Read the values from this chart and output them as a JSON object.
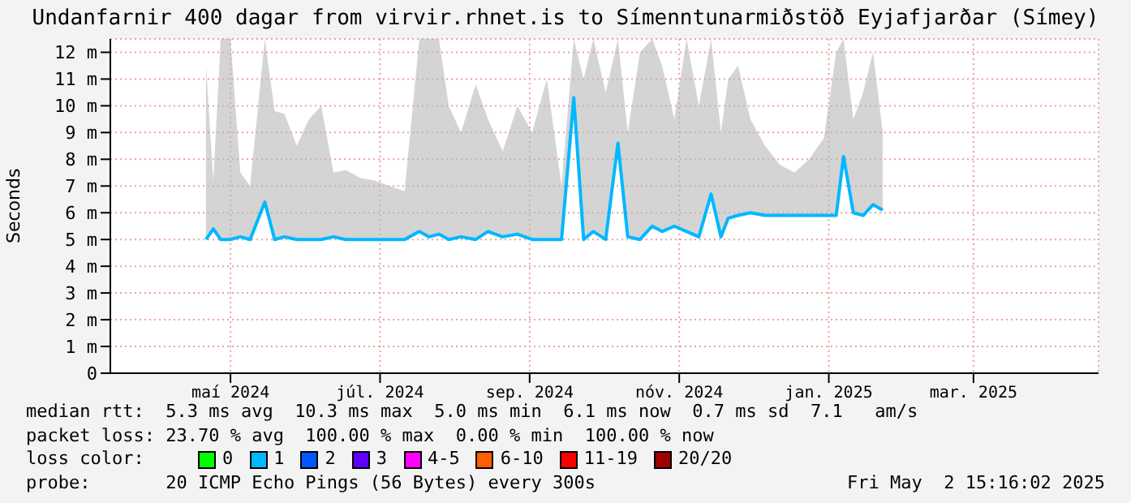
{
  "chart_data": {
    "type": "line",
    "title": "Undanfarnir 400 dagar from virvir.rhnet.is to Símenntunarmiðstöð Eyjafjarðar (Símey)",
    "ylabel": "Seconds",
    "x": [
      "2024-05-06",
      "2024-05-09",
      "2024-05-12",
      "2024-05-16",
      "2024-05-20",
      "2024-05-24",
      "2024-05-30",
      "2024-06-03",
      "2024-06-07",
      "2024-06-12",
      "2024-06-17",
      "2024-06-22",
      "2024-06-27",
      "2024-07-02",
      "2024-07-08",
      "2024-07-14",
      "2024-07-20",
      "2024-07-26",
      "2024-08-01",
      "2024-08-05",
      "2024-08-09",
      "2024-08-13",
      "2024-08-18",
      "2024-08-24",
      "2024-08-29",
      "2024-09-04",
      "2024-09-10",
      "2024-09-16",
      "2024-09-22",
      "2024-09-28",
      "2024-10-03",
      "2024-10-07",
      "2024-10-11",
      "2024-10-16",
      "2024-10-21",
      "2024-10-25",
      "2024-10-30",
      "2024-11-04",
      "2024-11-08",
      "2024-11-13",
      "2024-11-18",
      "2024-11-23",
      "2024-11-28",
      "2024-12-02",
      "2024-12-05",
      "2024-12-09",
      "2024-12-14",
      "2024-12-20",
      "2024-12-26",
      "2025-01-01",
      "2025-01-07",
      "2025-01-13",
      "2025-01-18",
      "2025-01-21",
      "2025-01-25",
      "2025-01-29",
      "2025-02-02",
      "2025-02-06"
    ],
    "series": [
      {
        "color": "#00b8ff",
        "values": [
          5.0,
          5.4,
          5.0,
          5.0,
          5.1,
          5.0,
          6.4,
          5.0,
          5.1,
          5.0,
          5.0,
          5.0,
          5.1,
          5.0,
          5.0,
          5.0,
          5.0,
          5.0,
          5.3,
          5.1,
          5.2,
          5.0,
          5.1,
          5.0,
          5.3,
          5.1,
          5.2,
          5.0,
          5.0,
          5.0,
          10.3,
          5.0,
          5.3,
          5.0,
          8.6,
          5.1,
          5.0,
          5.5,
          5.3,
          5.5,
          5.3,
          5.1,
          6.7,
          5.1,
          5.8,
          5.9,
          6.0,
          5.9,
          5.9,
          5.9,
          5.9,
          5.9,
          5.9,
          8.1,
          6.0,
          5.9,
          6.3,
          6.1
        ],
        "lower": [
          5.0,
          5.4,
          5.0,
          5.0,
          5.1,
          5.0,
          6.4,
          5.0,
          5.1,
          5.0,
          5.0,
          5.0,
          5.1,
          5.0,
          5.0,
          5.0,
          5.0,
          5.0,
          5.3,
          5.1,
          5.2,
          5.0,
          5.1,
          5.0,
          5.3,
          5.1,
          5.2,
          5.0,
          5.0,
          5.0,
          10.3,
          5.0,
          5.3,
          5.0,
          8.6,
          5.1,
          5.0,
          5.5,
          5.3,
          5.5,
          5.3,
          5.1,
          6.7,
          5.1,
          5.8,
          5.9,
          6.0,
          5.9,
          5.9,
          5.9,
          5.9,
          5.9,
          5.9,
          8.1,
          6.0,
          5.9,
          6.3,
          6.1
        ],
        "upper": [
          11.5,
          7.2,
          12.5,
          12.5,
          7.5,
          7.0,
          12.5,
          9.8,
          9.7,
          8.5,
          9.5,
          10.0,
          7.5,
          7.6,
          7.3,
          7.2,
          7.0,
          6.8,
          12.5,
          12.5,
          12.5,
          10.0,
          9.0,
          10.8,
          9.5,
          8.3,
          10.0,
          9.0,
          11.0,
          7.0,
          12.5,
          11.0,
          12.5,
          10.5,
          12.5,
          9.0,
          12.0,
          12.5,
          11.5,
          9.5,
          12.5,
          10.0,
          12.5,
          9.0,
          11.0,
          11.5,
          9.5,
          8.5,
          7.8,
          7.5,
          8.0,
          8.8,
          12.0,
          12.5,
          9.5,
          10.5,
          12.0,
          9.0
        ]
      },
      {
        "type": "scatter",
        "name": "0",
        "color": "#00ff00",
        "values": [
          null,
          null,
          null,
          null,
          null,
          null,
          null,
          null,
          null,
          null,
          null,
          null,
          null,
          null,
          null,
          null,
          null,
          null,
          null,
          null,
          null,
          null,
          null,
          null,
          null,
          null,
          null,
          null,
          null,
          null,
          null,
          null,
          null,
          null,
          null,
          null,
          null,
          null,
          null,
          null,
          null,
          null,
          null,
          null,
          null,
          null,
          null,
          null,
          null,
          null,
          null,
          null,
          null,
          null,
          null,
          null,
          null,
          null
        ]
      },
      {
        "type": "scatter",
        "name": "1",
        "color": "#00b8ff",
        "values": [
          null,
          null,
          null,
          null,
          null,
          null,
          null,
          null,
          null,
          null,
          null,
          null,
          null,
          null,
          null,
          null,
          null,
          null,
          null,
          null,
          null,
          null,
          null,
          null,
          null,
          null,
          null,
          null,
          null,
          null,
          null,
          null,
          null,
          null,
          null,
          null,
          null,
          null,
          null,
          null,
          null,
          null,
          null,
          null,
          null,
          null,
          null,
          null,
          null,
          null,
          null,
          null,
          null,
          null,
          null,
          null,
          null,
          null
        ]
      },
      {
        "type": "scatter",
        "name": "2",
        "color": "#0059ff",
        "values": [
          null,
          null,
          null,
          null,
          null,
          null,
          null,
          null,
          null,
          null,
          null,
          null,
          null,
          null,
          null,
          null,
          null,
          null,
          null,
          null,
          null,
          null,
          null,
          null,
          null,
          null,
          null,
          null,
          null,
          null,
          null,
          null,
          null,
          null,
          null,
          null,
          null,
          null,
          null,
          null,
          null,
          null,
          null,
          null,
          null,
          null,
          null,
          null,
          null,
          null,
          null,
          null,
          null,
          null,
          null,
          null,
          null,
          null
        ]
      },
      {
        "type": "scatter",
        "name": "3",
        "color": "#5e00ff",
        "values": [
          null,
          null,
          null,
          null,
          null,
          null,
          null,
          null,
          null,
          null,
          null,
          null,
          null,
          null,
          null,
          null,
          null,
          null,
          null,
          null,
          null,
          null,
          null,
          null,
          null,
          null,
          null,
          null,
          null,
          null,
          null,
          null,
          null,
          null,
          null,
          null,
          null,
          null,
          null,
          null,
          null,
          null,
          null,
          null,
          null,
          null,
          null,
          null,
          null,
          null,
          null,
          null,
          null,
          null,
          null,
          null,
          null,
          null
        ]
      },
      {
        "type": "scatter",
        "name": "4-5",
        "color": "#ff00ff",
        "values": [
          null,
          null,
          null,
          null,
          null,
          null,
          null,
          null,
          null,
          null,
          null,
          null,
          null,
          null,
          null,
          null,
          null,
          null,
          null,
          null,
          null,
          null,
          null,
          null,
          null,
          null,
          null,
          null,
          null,
          null,
          null,
          null,
          null,
          null,
          null,
          null,
          null,
          null,
          null,
          null,
          null,
          null,
          null,
          null,
          null,
          null,
          null,
          null,
          null,
          null,
          null,
          null,
          null,
          null,
          null,
          null,
          null,
          null
        ]
      },
      {
        "type": "scatter",
        "name": "6-10",
        "color": "#ff5e00",
        "values": [
          null,
          null,
          null,
          null,
          null,
          null,
          null,
          null,
          null,
          null,
          null,
          null,
          null,
          null,
          null,
          null,
          null,
          null,
          null,
          null,
          null,
          null,
          null,
          null,
          null,
          null,
          null,
          null,
          null,
          null,
          null,
          null,
          null,
          null,
          null,
          null,
          null,
          null,
          null,
          null,
          null,
          null,
          null,
          null,
          null,
          null,
          null,
          null,
          null,
          null,
          null,
          null,
          null,
          null,
          null,
          null,
          null,
          null
        ]
      },
      {
        "type": "scatter",
        "name": "11-19",
        "color": "#ff0000",
        "values": [
          null,
          null,
          null,
          null,
          null,
          null,
          null,
          null,
          null,
          null,
          null,
          null,
          null,
          null,
          null,
          null,
          null,
          null,
          null,
          null,
          null,
          null,
          null,
          null,
          null,
          null,
          null,
          null,
          null,
          null,
          null,
          null,
          null,
          null,
          null,
          null,
          null,
          null,
          null,
          null,
          null,
          null,
          null,
          null,
          null,
          null,
          null,
          null,
          null,
          null,
          null,
          null,
          null,
          null,
          null,
          null,
          null,
          null
        ]
      },
      {
        "type": "scatter",
        "name": "20/20",
        "color": "#a10000",
        "values": [
          null,
          null,
          null,
          null,
          null,
          null,
          null,
          null,
          null,
          null,
          null,
          null,
          null,
          null,
          null,
          null,
          null,
          null,
          null,
          null,
          null,
          null,
          null,
          null,
          null,
          null,
          null,
          null,
          null,
          null,
          null,
          null,
          null,
          null,
          null,
          null,
          null,
          null,
          null,
          null,
          null,
          null,
          null,
          null,
          null,
          null,
          null,
          null,
          null,
          null,
          null,
          null,
          null,
          null,
          null,
          null,
          null,
          null
        ]
      }
    ],
    "legend_title": "loss color:",
    "legend": "bottom",
    "grid": true,
    "xlim": [
      "2024-03-28",
      "2025-05-05"
    ],
    "xticks": [
      {
        "value": "2024-05-16",
        "label": "maí 2024"
      },
      {
        "value": "2024-07-16",
        "label": "júl. 2024"
      },
      {
        "value": "2024-09-15",
        "label": "sep. 2024"
      },
      {
        "value": "2024-11-15",
        "label": "nóv. 2024"
      },
      {
        "value": "2025-01-15",
        "label": "jan. 2025"
      },
      {
        "value": "2025-03-15",
        "label": "mar. 2025"
      }
    ],
    "ylim": [
      0,
      12.5
    ],
    "yticks": [
      0,
      {
        "value": 1,
        "label": "1 m"
      },
      {
        "value": 2,
        "label": "2 m"
      },
      {
        "value": 3,
        "label": "3 m"
      },
      {
        "value": 4,
        "label": "4 m"
      },
      {
        "value": 5,
        "label": "5 m"
      },
      {
        "value": 6,
        "label": "6 m"
      },
      {
        "value": 7,
        "label": "7 m"
      },
      {
        "value": 8,
        "label": "8 m"
      },
      {
        "value": 9,
        "label": "9 m"
      },
      {
        "value": 10,
        "label": "10 m"
      },
      {
        "value": 11,
        "label": "11 m"
      },
      {
        "value": 12,
        "label": "12 m"
      }
    ],
    "annotations": [
      "median rtt:  5.3 ms avg  10.3 ms max  5.0 ms min  6.1 ms now  0.7 ms sd  7.1   am/s",
      "packet loss: 23.70 % avg  100.00 % max  0.00 % min  100.00 % now",
      "probe:       20 ICMP Echo Pings (56 Bytes) every 300s",
      "Fri May  2 15:16:02 2025"
    ]
  }
}
